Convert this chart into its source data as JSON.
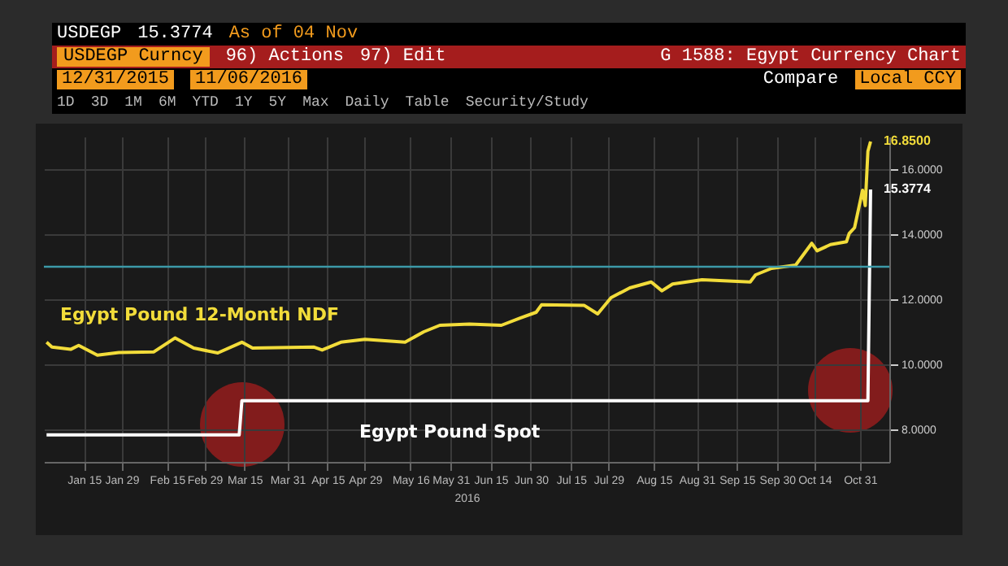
{
  "chart_data": {
    "type": "line",
    "title": "G 1588: Egypt Currency Chart",
    "xlabel": "2016",
    "annotations": [
      "USDEGP",
      "15.3774",
      "As of 04 Nov",
      "USDEGP Curncy",
      "96) Actions",
      "97) Edit",
      "12/31/2015",
      "11/06/2016",
      "Compare",
      "Local CCY",
      "1D",
      "3D",
      "1M",
      "6M",
      "YTD",
      "1Y",
      "5Y",
      "Max",
      "Daily",
      "Table",
      "Security/Study"
    ],
    "series": [
      {
        "name": "Egypt Pound 12-Month NDF",
        "color": "#f2dc3a",
        "x": [
          "2016-01-01",
          "2016-01-03",
          "2016-01-10",
          "2016-01-13",
          "2016-01-20",
          "2016-01-28",
          "2016-02-10",
          "2016-02-18",
          "2016-02-25",
          "2016-03-05",
          "2016-03-14",
          "2016-03-18",
          "2016-04-10",
          "2016-04-13",
          "2016-04-20",
          "2016-04-29",
          "2016-05-14",
          "2016-05-21",
          "2016-05-27",
          "2016-06-07",
          "2016-06-19",
          "2016-06-26",
          "2016-07-02",
          "2016-07-04",
          "2016-07-20",
          "2016-07-25",
          "2016-07-30",
          "2016-08-06",
          "2016-08-14",
          "2016-08-18",
          "2016-08-22",
          "2016-09-02",
          "2016-09-20",
          "2016-09-22",
          "2016-09-28",
          "2016-10-07",
          "2016-10-13",
          "2016-10-15",
          "2016-10-20",
          "2016-10-26",
          "2016-10-27",
          "2016-10-29",
          "2016-11-01",
          "2016-11-02",
          "2016-11-03",
          "2016-11-04"
        ],
        "values": [
          10.68,
          10.53,
          10.46,
          10.58,
          10.28,
          10.36,
          10.38,
          10.81,
          10.5,
          10.35,
          10.68,
          10.5,
          10.53,
          10.44,
          10.68,
          10.77,
          10.68,
          11.0,
          11.2,
          11.24,
          11.2,
          11.42,
          11.6,
          11.83,
          11.81,
          11.55,
          12.05,
          12.35,
          12.53,
          12.26,
          12.47,
          12.6,
          12.53,
          12.75,
          12.95,
          13.05,
          13.72,
          13.49,
          13.68,
          13.77,
          14.02,
          14.2,
          15.35,
          14.88,
          16.55,
          16.85
        ],
        "value_labels": [
          null,
          null,
          null,
          null,
          null,
          null,
          null,
          null,
          null,
          null,
          null,
          null,
          null,
          null,
          null,
          null,
          null,
          null,
          null,
          null,
          null,
          null,
          null,
          null,
          null,
          null,
          null,
          null,
          null,
          null,
          null,
          null,
          null,
          null,
          null,
          null,
          null,
          null,
          null,
          null,
          null,
          null,
          null,
          null,
          null,
          "16.8500"
        ]
      },
      {
        "name": "Egypt Pound Spot",
        "color": "#ffffff",
        "x": [
          "2016-01-01",
          "2016-03-13",
          "2016-03-14",
          "2016-11-03",
          "2016-11-04"
        ],
        "values": [
          7.83,
          7.83,
          8.88,
          8.88,
          15.3774
        ],
        "value_labels": [
          null,
          null,
          null,
          null,
          "15.3774"
        ]
      }
    ],
    "xlim": [
      "2015-12-31",
      "2016-11-11"
    ],
    "xticks": [
      {
        "value": "2016-01-15",
        "label": "Jan 15"
      },
      {
        "value": "2016-01-29",
        "label": "Jan 29"
      },
      {
        "value": "2016-02-15",
        "label": "Feb 15"
      },
      {
        "value": "2016-02-29",
        "label": "Feb 29"
      },
      {
        "value": "2016-03-15",
        "label": "Mar 15"
      },
      {
        "value": "2016-03-31",
        "label": "Mar 31"
      },
      {
        "value": "2016-04-15",
        "label": "Apr 15"
      },
      {
        "value": "2016-04-29",
        "label": "Apr 29"
      },
      {
        "value": "2016-05-16",
        "label": "May 16"
      },
      {
        "value": "2016-05-31",
        "label": "May 31"
      },
      {
        "value": "2016-06-15",
        "label": "Jun 15"
      },
      {
        "value": "2016-06-30",
        "label": "Jun 30"
      },
      {
        "value": "2016-07-15",
        "label": "Jul 15"
      },
      {
        "value": "2016-07-29",
        "label": "Jul 29"
      },
      {
        "value": "2016-08-15",
        "label": "Aug 15"
      },
      {
        "value": "2016-08-31",
        "label": "Aug 31"
      },
      {
        "value": "2016-09-15",
        "label": "Sep 15"
      },
      {
        "value": "2016-09-30",
        "label": "Sep 30"
      },
      {
        "value": "2016-10-14",
        "label": "Oct 14"
      },
      {
        "value": "2016-10-31",
        "label": "Oct 31"
      }
    ],
    "ylim": [
      7,
      17
    ],
    "yticks": [
      {
        "value": 8,
        "label": "8.0000"
      },
      {
        "value": 10,
        "label": "10.0000"
      },
      {
        "value": 12,
        "label": "12.0000"
      },
      {
        "value": 14,
        "label": "14.0000"
      },
      {
        "value": 16,
        "label": "16.0000"
      }
    ],
    "ref_lines": [
      {
        "axis": "y",
        "value": 13,
        "color": "#3c9aa8"
      }
    ],
    "grid": true,
    "line_style": "solid"
  }
}
